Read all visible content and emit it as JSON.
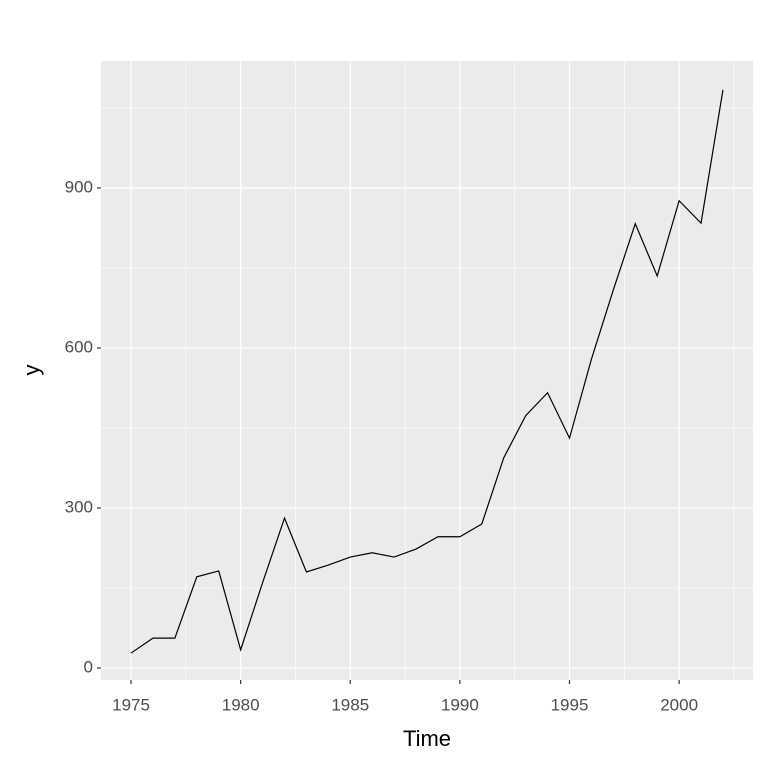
{
  "chart_data": {
    "type": "line",
    "x_label": "Time",
    "y_label": "y",
    "x": [
      1975,
      1976,
      1977,
      1978,
      1979,
      1980,
      1981,
      1982,
      1983,
      1984,
      1985,
      1986,
      1987,
      1988,
      1989,
      1990,
      1991,
      1992,
      1993,
      1994,
      1995,
      1996,
      1997,
      1998,
      1999,
      2000,
      2001,
      2002
    ],
    "series": [
      {
        "color": "#000000",
        "values": [
          28,
          56,
          56,
          171,
          182,
          34,
          160,
          281,
          180,
          193,
          208,
          216,
          208,
          223,
          246,
          246,
          270,
          394,
          473,
          516,
          431,
          579,
          709,
          833,
          735,
          876,
          834,
          1084
        ]
      }
    ],
    "xlim": [
      1973.63,
      2003.37
    ],
    "xticks": [
      1975,
      1980,
      1985,
      1990,
      1995,
      2000
    ],
    "ylim": [
      -22.5,
      1138
    ],
    "yticks": [
      0,
      300,
      600,
      900
    ],
    "grid": true,
    "panel_color": "#ebebeb"
  }
}
